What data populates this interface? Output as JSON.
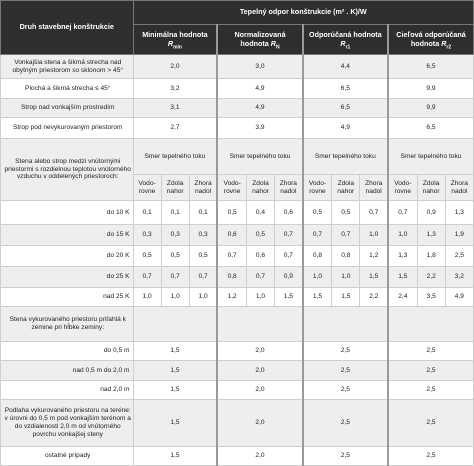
{
  "header": {
    "col_construction": "Druh stavebnej konštrukcie",
    "group_title": "Tepelný odpor konštrukcie (m² . K)/W",
    "cols": [
      {
        "line1": "Minimálna hodnota",
        "sym": "R",
        "sub": "min"
      },
      {
        "line1": "Normalizovaná",
        "line2": "hodnota",
        "sym": "R",
        "sub": "N"
      },
      {
        "line1": "Odporúčaná hodnota",
        "sym": "R",
        "sub": "r1"
      },
      {
        "line1": "Cieľová odporúčaná",
        "line2": "hodnota",
        "sym": "R",
        "sub": "r2"
      }
    ]
  },
  "simple_rows": [
    {
      "label": "Vonkajšia stena a šikmá strecha nad obytným priestorom so sklonom > 45°",
      "values": [
        "2,0",
        "3,0",
        "4,4",
        "6,5"
      ]
    },
    {
      "label": "Plochá a šikmá strecha ≤ 45°",
      "values": [
        "3,2",
        "4,9",
        "6,5",
        "9,9"
      ]
    },
    {
      "label": "Strop nad vonkajším prostredím",
      "values": [
        "3,1",
        "4,9",
        "6,5",
        "9,9"
      ]
    },
    {
      "label": "Strop pod nevykurovaným priestorom",
      "values": [
        "2,7",
        "3,9",
        "4,9",
        "6,5"
      ]
    }
  ],
  "wall_section": {
    "label": "Stena alebo strop medzi vnútornými priestormi s rozdielnou teplotou vnútorného vzduchu v oddelených priestoroch:",
    "flow_label": "Smer tepelného toku",
    "directions": [
      "Vodo-rovne",
      "Zdola nahor",
      "Zhora nadol"
    ],
    "rows": [
      {
        "label": "do 10 K",
        "values": [
          "0,1",
          "0,1",
          "0,1",
          "0,5",
          "0,4",
          "0,6",
          "0,5",
          "0,5",
          "0,7",
          "0,7",
          "0,9",
          "1,3"
        ]
      },
      {
        "label": "do 15 K",
        "values": [
          "0,3",
          "0,3",
          "0,3",
          "0,6",
          "0,5",
          "0,7",
          "0,7",
          "0,7",
          "1,0",
          "1,0",
          "1,3",
          "1,9"
        ]
      },
      {
        "label": "do 20 K",
        "values": [
          "0,5",
          "0,5",
          "0,5",
          "0,7",
          "0,6",
          "0,7",
          "0,8",
          "0,8",
          "1,2",
          "1,3",
          "1,8",
          "2,5"
        ]
      },
      {
        "label": "do 25 K",
        "values": [
          "0,7",
          "0,7",
          "0,7",
          "0,8",
          "0,7",
          "0,9",
          "1,0",
          "1,0",
          "1,5",
          "1,5",
          "2,2",
          "3,2"
        ]
      },
      {
        "label": "nad 25 K",
        "values": [
          "1,0",
          "1,0",
          "1,0",
          "1,2",
          "1,0",
          "1,5",
          "1,5",
          "1,5",
          "2,2",
          "2,4",
          "3,5",
          "4,9"
        ]
      }
    ]
  },
  "ground_section": {
    "label": "Stena vykurovaného priestoru priľahlá k zemine pri hĺbke zeminy:",
    "rows": [
      {
        "label": "do 0,5 m",
        "values": [
          "1,5",
          "2,0",
          "2,5",
          "2,5"
        ]
      },
      {
        "label": "nad 0,5 m do 2,0 m",
        "values": [
          "1,5",
          "2,0",
          "2,5",
          "2,5"
        ]
      },
      {
        "label": "nad 2,0 m",
        "values": [
          "1,5",
          "2,0",
          "2,5",
          "2,5"
        ]
      }
    ]
  },
  "floor_section": {
    "label": "Podlaha vykurovaného priestoru na teréne: v úrovni do 0,5 m pod vonkajším terénom a do vzdialenosti 2,0 m od vnútorného povrchu vonkajšej steny",
    "values": [
      "1,5",
      "2,0",
      "2,5",
      "2,5"
    ],
    "other_label": "ostatné prípady",
    "other_values": [
      "1,5",
      "2,0",
      "2,5",
      "2,5"
    ]
  }
}
